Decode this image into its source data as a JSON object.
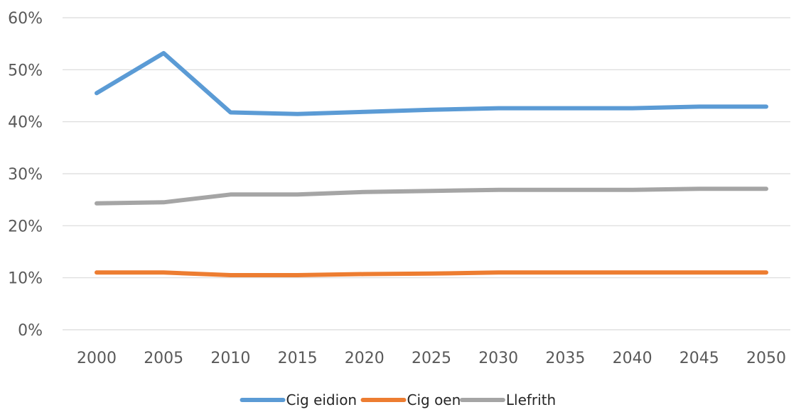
{
  "chart_data": {
    "type": "line",
    "title": "",
    "xlabel": "",
    "ylabel": "",
    "x": [
      "2000",
      "2005",
      "2010",
      "2015",
      "2020",
      "2025",
      "2030",
      "2035",
      "2040",
      "2045",
      "2050"
    ],
    "ylim": [
      0,
      60
    ],
    "yticks": [
      0,
      10,
      20,
      30,
      40,
      50,
      60
    ],
    "ytick_labels": [
      "0%",
      "10%",
      "20%",
      "30%",
      "40%",
      "50%",
      "60%"
    ],
    "grid": true,
    "legend_position": "bottom-center",
    "series": [
      {
        "name": "Cig eidion",
        "color": "#5B9BD5",
        "values": [
          45.5,
          53.2,
          41.8,
          41.5,
          41.9,
          42.3,
          42.6,
          42.6,
          42.6,
          42.9,
          42.9
        ]
      },
      {
        "name": "Cig oen",
        "color": "#ED7D31",
        "values": [
          11.0,
          11.0,
          10.5,
          10.5,
          10.7,
          10.8,
          11.0,
          11.0,
          11.0,
          11.0,
          11.0
        ]
      },
      {
        "name": "Llefrith",
        "color": "#A5A5A5",
        "values": [
          24.3,
          24.5,
          26.0,
          26.0,
          26.5,
          26.7,
          26.9,
          26.9,
          26.9,
          27.1,
          27.1
        ]
      }
    ]
  }
}
